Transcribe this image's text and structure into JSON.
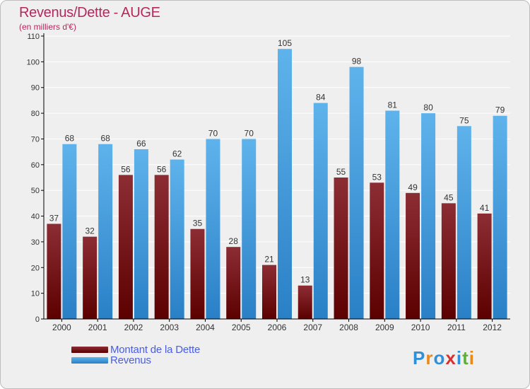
{
  "title": "Revenus/Dette - AUGE",
  "subtitle": "(en milliers d'€)",
  "logo": {
    "text": "Proxiti",
    "letters": [
      {
        "ch": "P",
        "color": "#2f8fd8"
      },
      {
        "ch": "r",
        "color": "#e8891c"
      },
      {
        "ch": "o",
        "color": "#2f8fd8"
      },
      {
        "ch": "x",
        "color": "#d63030"
      },
      {
        "ch": "i",
        "color": "#2f8fd8"
      },
      {
        "ch": "t",
        "color": "#5bb035"
      },
      {
        "ch": "i",
        "color": "#e8891c"
      }
    ]
  },
  "colors": {
    "debt_top": "#8c2d34",
    "debt_bottom": "#5c0000",
    "revenue_top": "#5fb3ec",
    "revenue_bottom": "#2a80c6",
    "axis": "#000000",
    "grid": "#ffffff",
    "label": "#333333"
  },
  "chart_data": {
    "type": "bar",
    "categories": [
      "2000",
      "2001",
      "2002",
      "2003",
      "2004",
      "2005",
      "2006",
      "2007",
      "2008",
      "2009",
      "2010",
      "2011",
      "2012"
    ],
    "series": [
      {
        "name": "Montant de la Dette",
        "key": "debt",
        "values": [
          37,
          32,
          56,
          56,
          35,
          28,
          21,
          13,
          55,
          53,
          49,
          45,
          41
        ]
      },
      {
        "name": "Revenus",
        "key": "revenue",
        "values": [
          68,
          68,
          66,
          62,
          70,
          70,
          105,
          84,
          98,
          81,
          80,
          75,
          79
        ]
      }
    ],
    "ylim": [
      0,
      110
    ],
    "yticks": [
      0,
      10,
      20,
      30,
      40,
      50,
      60,
      70,
      80,
      90,
      100,
      110
    ],
    "grid": true,
    "legend_position": "bottom-left"
  }
}
